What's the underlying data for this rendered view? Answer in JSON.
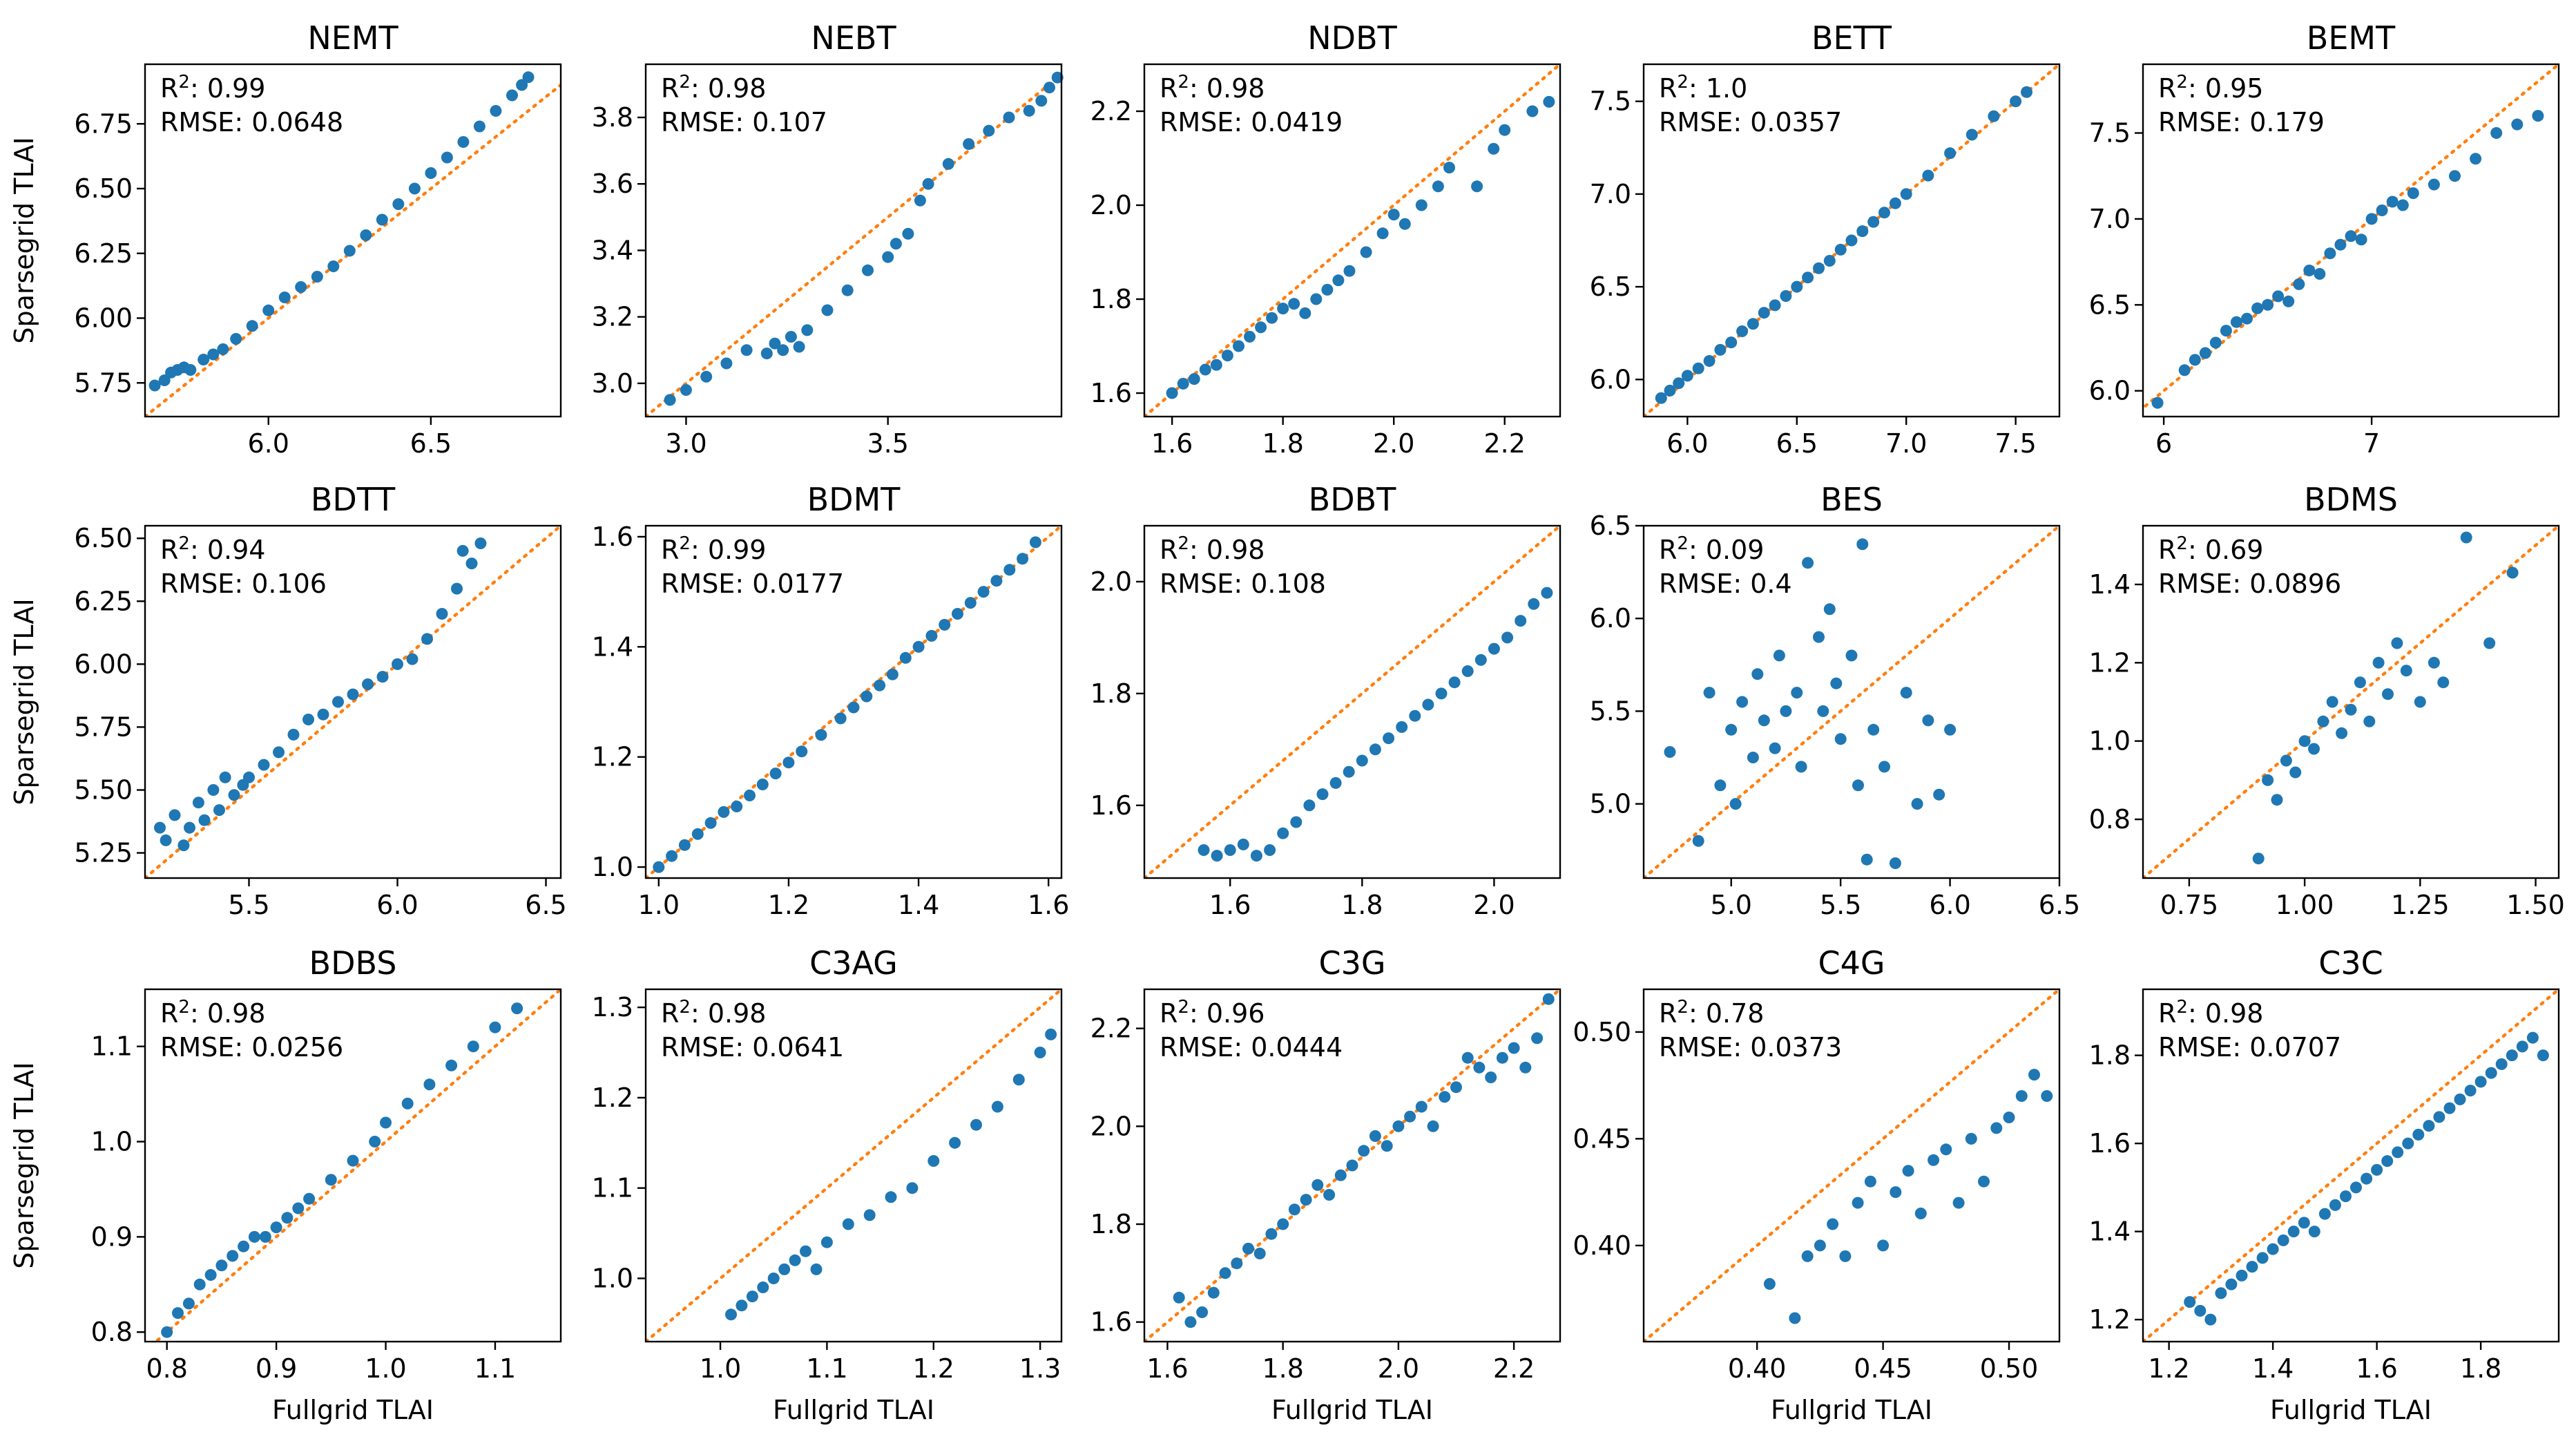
{
  "colors": {
    "points": "#1f77b4",
    "identity_line": "#ff7f0e",
    "axes": "#000000"
  },
  "chart_data": [
    {
      "type": "scatter",
      "title": "NEMT",
      "xlabel": "",
      "ylabel": "Sparsegrid TLAI",
      "xlim": [
        5.62,
        6.9
      ],
      "ylim": [
        5.62,
        6.98
      ],
      "xticks": [
        "6.0",
        "6.5"
      ],
      "yticks": [
        "5.75",
        "6.00",
        "6.25",
        "6.50",
        "6.75"
      ],
      "annotation": {
        "r2": "0.99",
        "rmse": "0.0648"
      },
      "x": [
        5.65,
        5.68,
        5.7,
        5.72,
        5.74,
        5.76,
        5.8,
        5.83,
        5.86,
        5.9,
        5.95,
        6.0,
        6.05,
        6.1,
        6.15,
        6.2,
        6.25,
        6.3,
        6.35,
        6.4,
        6.45,
        6.5,
        6.55,
        6.6,
        6.65,
        6.7,
        6.75,
        6.78,
        6.8
      ],
      "y": [
        5.74,
        5.76,
        5.79,
        5.8,
        5.81,
        5.8,
        5.84,
        5.86,
        5.88,
        5.92,
        5.97,
        6.03,
        6.08,
        6.12,
        6.16,
        6.2,
        6.26,
        6.32,
        6.38,
        6.44,
        6.5,
        6.56,
        6.62,
        6.68,
        6.74,
        6.8,
        6.86,
        6.9,
        6.93
      ]
    },
    {
      "type": "scatter",
      "title": "NEBT",
      "xlabel": "",
      "ylabel": "",
      "xlim": [
        2.9,
        3.93
      ],
      "ylim": [
        2.9,
        3.96
      ],
      "xticks": [
        "3.0",
        "3.5"
      ],
      "yticks": [
        "3.0",
        "3.2",
        "3.4",
        "3.6",
        "3.8"
      ],
      "annotation": {
        "r2": "0.98",
        "rmse": "0.107"
      },
      "x": [
        2.96,
        3.0,
        3.05,
        3.1,
        3.15,
        3.2,
        3.22,
        3.24,
        3.26,
        3.28,
        3.3,
        3.35,
        3.4,
        3.45,
        3.5,
        3.52,
        3.55,
        3.58,
        3.6,
        3.65,
        3.7,
        3.75,
        3.8,
        3.85,
        3.88,
        3.9,
        3.92
      ],
      "y": [
        2.95,
        2.98,
        3.02,
        3.06,
        3.1,
        3.09,
        3.12,
        3.1,
        3.14,
        3.11,
        3.16,
        3.22,
        3.28,
        3.34,
        3.38,
        3.42,
        3.45,
        3.55,
        3.6,
        3.66,
        3.72,
        3.76,
        3.8,
        3.82,
        3.85,
        3.89,
        3.92
      ]
    },
    {
      "type": "scatter",
      "title": "NDBT",
      "xlabel": "",
      "ylabel": "",
      "xlim": [
        1.55,
        2.3
      ],
      "ylim": [
        1.55,
        2.3
      ],
      "xticks": [
        "1.6",
        "1.8",
        "2.0",
        "2.2"
      ],
      "yticks": [
        "1.6",
        "1.8",
        "2.0",
        "2.2"
      ],
      "annotation": {
        "r2": "0.98",
        "rmse": "0.0419"
      },
      "x": [
        1.6,
        1.62,
        1.64,
        1.66,
        1.68,
        1.7,
        1.72,
        1.74,
        1.76,
        1.78,
        1.8,
        1.82,
        1.84,
        1.86,
        1.88,
        1.9,
        1.92,
        1.95,
        1.98,
        2.0,
        2.02,
        2.05,
        2.08,
        2.1,
        2.15,
        2.18,
        2.2,
        2.25,
        2.28
      ],
      "y": [
        1.6,
        1.62,
        1.63,
        1.65,
        1.66,
        1.68,
        1.7,
        1.72,
        1.74,
        1.76,
        1.78,
        1.79,
        1.77,
        1.8,
        1.82,
        1.84,
        1.86,
        1.9,
        1.94,
        1.98,
        1.96,
        2.0,
        2.04,
        2.08,
        2.04,
        2.12,
        2.16,
        2.2,
        2.22
      ]
    },
    {
      "type": "scatter",
      "title": "BETT",
      "xlabel": "",
      "ylabel": "",
      "xlim": [
        5.8,
        7.7
      ],
      "ylim": [
        5.8,
        7.7
      ],
      "xticks": [
        "6.0",
        "6.5",
        "7.0",
        "7.5"
      ],
      "yticks": [
        "6.0",
        "6.5",
        "7.0",
        "7.5"
      ],
      "annotation": {
        "r2": "1.0",
        "rmse": "0.0357"
      },
      "x": [
        5.88,
        5.92,
        5.96,
        6.0,
        6.05,
        6.1,
        6.15,
        6.2,
        6.25,
        6.3,
        6.35,
        6.4,
        6.45,
        6.5,
        6.55,
        6.6,
        6.65,
        6.7,
        6.75,
        6.8,
        6.85,
        6.9,
        6.95,
        7.0,
        7.1,
        7.2,
        7.3,
        7.4,
        7.5,
        7.55
      ],
      "y": [
        5.9,
        5.94,
        5.98,
        6.02,
        6.06,
        6.1,
        6.16,
        6.2,
        6.26,
        6.3,
        6.36,
        6.4,
        6.45,
        6.5,
        6.55,
        6.6,
        6.64,
        6.7,
        6.75,
        6.8,
        6.85,
        6.9,
        6.95,
        7.0,
        7.1,
        7.22,
        7.32,
        7.42,
        7.5,
        7.55
      ]
    },
    {
      "type": "scatter",
      "title": "BEMT",
      "xlabel": "",
      "ylabel": "",
      "xlim": [
        5.9,
        7.9
      ],
      "ylim": [
        5.85,
        7.9
      ],
      "xticks": [
        "6",
        "7"
      ],
      "yticks": [
        "6.0",
        "6.5",
        "7.0",
        "7.5"
      ],
      "annotation": {
        "r2": "0.95",
        "rmse": "0.179"
      },
      "x": [
        5.97,
        6.1,
        6.15,
        6.2,
        6.25,
        6.3,
        6.35,
        6.4,
        6.45,
        6.5,
        6.55,
        6.6,
        6.65,
        6.7,
        6.75,
        6.8,
        6.85,
        6.9,
        6.95,
        7.0,
        7.05,
        7.1,
        7.15,
        7.2,
        7.3,
        7.4,
        7.5,
        7.6,
        7.7,
        7.8
      ],
      "y": [
        5.93,
        6.12,
        6.18,
        6.22,
        6.28,
        6.35,
        6.4,
        6.42,
        6.48,
        6.5,
        6.55,
        6.52,
        6.62,
        6.7,
        6.68,
        6.8,
        6.85,
        6.9,
        6.88,
        7.0,
        7.05,
        7.1,
        7.08,
        7.15,
        7.2,
        7.25,
        7.35,
        7.5,
        7.55,
        7.6
      ]
    },
    {
      "type": "scatter",
      "title": "BDTT",
      "xlabel": "",
      "ylabel": "Sparsegrid TLAI",
      "xlim": [
        5.15,
        6.55
      ],
      "ylim": [
        5.15,
        6.55
      ],
      "xticks": [
        "5.5",
        "6.0",
        "6.5"
      ],
      "yticks": [
        "5.25",
        "5.50",
        "5.75",
        "6.00",
        "6.25",
        "6.50"
      ],
      "annotation": {
        "r2": "0.94",
        "rmse": "0.106"
      },
      "x": [
        5.2,
        5.22,
        5.25,
        5.28,
        5.3,
        5.33,
        5.35,
        5.38,
        5.4,
        5.42,
        5.45,
        5.48,
        5.5,
        5.55,
        5.6,
        5.65,
        5.7,
        5.75,
        5.8,
        5.85,
        5.9,
        5.95,
        6.0,
        6.05,
        6.1,
        6.15,
        6.2,
        6.22,
        6.25,
        6.28
      ],
      "y": [
        5.35,
        5.3,
        5.4,
        5.28,
        5.35,
        5.45,
        5.38,
        5.5,
        5.42,
        5.55,
        5.48,
        5.52,
        5.55,
        5.6,
        5.65,
        5.72,
        5.78,
        5.8,
        5.85,
        5.88,
        5.92,
        5.95,
        6.0,
        6.02,
        6.1,
        6.2,
        6.3,
        6.45,
        6.4,
        6.48
      ]
    },
    {
      "type": "scatter",
      "title": "BDMT",
      "xlabel": "",
      "ylabel": "",
      "xlim": [
        0.98,
        1.62
      ],
      "ylim": [
        0.98,
        1.62
      ],
      "xticks": [
        "1.0",
        "1.2",
        "1.4",
        "1.6"
      ],
      "yticks": [
        "1.0",
        "1.2",
        "1.4",
        "1.6"
      ],
      "annotation": {
        "r2": "0.99",
        "rmse": "0.0177"
      },
      "x": [
        1.0,
        1.02,
        1.04,
        1.06,
        1.08,
        1.1,
        1.12,
        1.14,
        1.16,
        1.18,
        1.2,
        1.22,
        1.25,
        1.28,
        1.3,
        1.32,
        1.34,
        1.36,
        1.38,
        1.4,
        1.42,
        1.44,
        1.46,
        1.48,
        1.5,
        1.52,
        1.54,
        1.56,
        1.58
      ],
      "y": [
        1.0,
        1.02,
        1.04,
        1.06,
        1.08,
        1.1,
        1.11,
        1.13,
        1.15,
        1.17,
        1.19,
        1.21,
        1.24,
        1.27,
        1.29,
        1.31,
        1.33,
        1.35,
        1.38,
        1.4,
        1.42,
        1.44,
        1.46,
        1.48,
        1.5,
        1.52,
        1.54,
        1.56,
        1.59
      ]
    },
    {
      "type": "scatter",
      "title": "BDBT",
      "xlabel": "",
      "ylabel": "",
      "xlim": [
        1.47,
        2.1
      ],
      "ylim": [
        1.47,
        2.1
      ],
      "xticks": [
        "1.6",
        "1.8",
        "2.0"
      ],
      "yticks": [
        "1.6",
        "1.8",
        "2.0"
      ],
      "annotation": {
        "r2": "0.98",
        "rmse": "0.108"
      },
      "x": [
        1.56,
        1.58,
        1.6,
        1.62,
        1.64,
        1.66,
        1.68,
        1.7,
        1.72,
        1.74,
        1.76,
        1.78,
        1.8,
        1.82,
        1.84,
        1.86,
        1.88,
        1.9,
        1.92,
        1.94,
        1.96,
        1.98,
        2.0,
        2.02,
        2.04,
        2.06,
        2.08
      ],
      "y": [
        1.52,
        1.51,
        1.52,
        1.53,
        1.51,
        1.52,
        1.55,
        1.57,
        1.6,
        1.62,
        1.64,
        1.66,
        1.68,
        1.7,
        1.72,
        1.74,
        1.76,
        1.78,
        1.8,
        1.82,
        1.84,
        1.86,
        1.88,
        1.9,
        1.93,
        1.96,
        1.98
      ]
    },
    {
      "type": "scatter",
      "title": "BES",
      "xlabel": "",
      "ylabel": "",
      "xlim": [
        4.6,
        6.5
      ],
      "ylim": [
        4.6,
        6.5
      ],
      "xticks": [
        "5.0",
        "5.5",
        "6.0",
        "6.5"
      ],
      "yticks": [
        "5.0",
        "5.5",
        "6.0",
        "6.5"
      ],
      "annotation": {
        "r2": "0.09",
        "rmse": "0.4"
      },
      "x": [
        4.72,
        4.85,
        4.9,
        4.95,
        5.0,
        5.02,
        5.05,
        5.1,
        5.12,
        5.15,
        5.2,
        5.22,
        5.25,
        5.3,
        5.32,
        5.35,
        5.4,
        5.42,
        5.45,
        5.48,
        5.5,
        5.55,
        5.58,
        5.6,
        5.62,
        5.65,
        5.7,
        5.75,
        5.8,
        5.85,
        5.9,
        5.95,
        6.0
      ],
      "y": [
        5.28,
        4.8,
        5.6,
        5.1,
        5.4,
        5.0,
        5.55,
        5.25,
        5.7,
        5.45,
        5.3,
        5.8,
        5.5,
        5.6,
        5.2,
        6.3,
        5.9,
        5.5,
        6.05,
        5.65,
        5.35,
        5.8,
        5.1,
        6.4,
        4.7,
        5.4,
        5.2,
        4.68,
        5.6,
        5.0,
        5.45,
        5.05,
        5.4
      ]
    },
    {
      "type": "scatter",
      "title": "BDMS",
      "xlabel": "",
      "ylabel": "",
      "xlim": [
        0.65,
        1.55
      ],
      "ylim": [
        0.65,
        1.55
      ],
      "xticks": [
        "0.75",
        "1.00",
        "1.25",
        "1.50"
      ],
      "yticks": [
        "0.8",
        "1.0",
        "1.2",
        "1.4"
      ],
      "annotation": {
        "r2": "0.69",
        "rmse": "0.0896"
      },
      "x": [
        0.9,
        0.92,
        0.94,
        0.96,
        0.98,
        1.0,
        1.02,
        1.04,
        1.06,
        1.08,
        1.1,
        1.12,
        1.14,
        1.16,
        1.18,
        1.2,
        1.22,
        1.25,
        1.28,
        1.3,
        1.35,
        1.4,
        1.45
      ],
      "y": [
        0.7,
        0.9,
        0.85,
        0.95,
        0.92,
        1.0,
        0.98,
        1.05,
        1.1,
        1.02,
        1.08,
        1.15,
        1.05,
        1.2,
        1.12,
        1.25,
        1.18,
        1.1,
        1.2,
        1.15,
        1.52,
        1.25,
        1.43
      ]
    },
    {
      "type": "scatter",
      "title": "BDBS",
      "xlabel": "Fullgrid TLAI",
      "ylabel": "Sparsegrid TLAI",
      "xlim": [
        0.78,
        1.16
      ],
      "ylim": [
        0.79,
        1.16
      ],
      "xticks": [
        "0.8",
        "0.9",
        "1.0",
        "1.1"
      ],
      "yticks": [
        "0.8",
        "0.9",
        "1.0",
        "1.1"
      ],
      "annotation": {
        "r2": "0.98",
        "rmse": "0.0256"
      },
      "x": [
        0.8,
        0.81,
        0.82,
        0.83,
        0.84,
        0.85,
        0.86,
        0.87,
        0.88,
        0.89,
        0.9,
        0.91,
        0.92,
        0.93,
        0.95,
        0.97,
        0.99,
        1.0,
        1.02,
        1.04,
        1.06,
        1.08,
        1.1,
        1.12
      ],
      "y": [
        0.8,
        0.82,
        0.83,
        0.85,
        0.86,
        0.87,
        0.88,
        0.89,
        0.9,
        0.9,
        0.91,
        0.92,
        0.93,
        0.94,
        0.96,
        0.98,
        1.0,
        1.02,
        1.04,
        1.06,
        1.08,
        1.1,
        1.12,
        1.14
      ]
    },
    {
      "type": "scatter",
      "title": "C3AG",
      "xlabel": "Fullgrid TLAI",
      "ylabel": "",
      "xlim": [
        0.93,
        1.32
      ],
      "ylim": [
        0.93,
        1.32
      ],
      "xticks": [
        "1.0",
        "1.1",
        "1.2",
        "1.3"
      ],
      "yticks": [
        "1.0",
        "1.1",
        "1.2",
        "1.3"
      ],
      "annotation": {
        "r2": "0.98",
        "rmse": "0.0641"
      },
      "x": [
        1.01,
        1.02,
        1.03,
        1.04,
        1.05,
        1.06,
        1.07,
        1.08,
        1.09,
        1.1,
        1.12,
        1.14,
        1.16,
        1.18,
        1.2,
        1.22,
        1.24,
        1.26,
        1.28,
        1.3,
        1.31
      ],
      "y": [
        0.96,
        0.97,
        0.98,
        0.99,
        1.0,
        1.01,
        1.02,
        1.03,
        1.01,
        1.04,
        1.06,
        1.07,
        1.09,
        1.1,
        1.13,
        1.15,
        1.17,
        1.19,
        1.22,
        1.25,
        1.27
      ]
    },
    {
      "type": "scatter",
      "title": "C3G",
      "xlabel": "Fullgrid TLAI",
      "ylabel": "",
      "xlim": [
        1.56,
        2.28
      ],
      "ylim": [
        1.56,
        2.28
      ],
      "xticks": [
        "1.6",
        "1.8",
        "2.0",
        "2.2"
      ],
      "yticks": [
        "1.6",
        "1.8",
        "2.0",
        "2.2"
      ],
      "annotation": {
        "r2": "0.96",
        "rmse": "0.0444"
      },
      "x": [
        1.62,
        1.64,
        1.66,
        1.68,
        1.7,
        1.72,
        1.74,
        1.76,
        1.78,
        1.8,
        1.82,
        1.84,
        1.86,
        1.88,
        1.9,
        1.92,
        1.94,
        1.96,
        1.98,
        2.0,
        2.02,
        2.04,
        2.06,
        2.08,
        2.1,
        2.12,
        2.14,
        2.16,
        2.18,
        2.2,
        2.22,
        2.24,
        2.26
      ],
      "y": [
        1.65,
        1.6,
        1.62,
        1.66,
        1.7,
        1.72,
        1.75,
        1.74,
        1.78,
        1.8,
        1.83,
        1.85,
        1.88,
        1.86,
        1.9,
        1.92,
        1.95,
        1.98,
        1.96,
        2.0,
        2.02,
        2.04,
        2.0,
        2.06,
        2.08,
        2.14,
        2.12,
        2.1,
        2.14,
        2.16,
        2.12,
        2.18,
        2.26
      ]
    },
    {
      "type": "scatter",
      "title": "C4G",
      "xlabel": "Fullgrid TLAI",
      "ylabel": "",
      "xlim": [
        0.355,
        0.52
      ],
      "ylim": [
        0.355,
        0.52
      ],
      "xticks": [
        "0.40",
        "0.45",
        "0.50"
      ],
      "yticks": [
        "0.40",
        "0.45",
        "0.50"
      ],
      "annotation": {
        "r2": "0.78",
        "rmse": "0.0373"
      },
      "x": [
        0.405,
        0.415,
        0.42,
        0.425,
        0.43,
        0.435,
        0.44,
        0.445,
        0.45,
        0.455,
        0.46,
        0.465,
        0.47,
        0.475,
        0.48,
        0.485,
        0.49,
        0.495,
        0.5,
        0.505,
        0.51,
        0.515
      ],
      "y": [
        0.382,
        0.366,
        0.395,
        0.4,
        0.41,
        0.395,
        0.42,
        0.43,
        0.4,
        0.425,
        0.435,
        0.415,
        0.44,
        0.445,
        0.42,
        0.45,
        0.43,
        0.455,
        0.46,
        0.47,
        0.48,
        0.47
      ]
    },
    {
      "type": "scatter",
      "title": "C3C",
      "xlabel": "Fullgrid TLAI",
      "ylabel": "",
      "xlim": [
        1.15,
        1.95
      ],
      "ylim": [
        1.15,
        1.95
      ],
      "xticks": [
        "1.2",
        "1.4",
        "1.6",
        "1.8"
      ],
      "yticks": [
        "1.2",
        "1.4",
        "1.6",
        "1.8"
      ],
      "annotation": {
        "r2": "0.98",
        "rmse": "0.0707"
      },
      "x": [
        1.24,
        1.26,
        1.28,
        1.3,
        1.32,
        1.34,
        1.36,
        1.38,
        1.4,
        1.42,
        1.44,
        1.46,
        1.48,
        1.5,
        1.52,
        1.54,
        1.56,
        1.58,
        1.6,
        1.62,
        1.64,
        1.66,
        1.68,
        1.7,
        1.72,
        1.74,
        1.76,
        1.78,
        1.8,
        1.82,
        1.84,
        1.86,
        1.88,
        1.9,
        1.92
      ],
      "y": [
        1.24,
        1.22,
        1.2,
        1.26,
        1.28,
        1.3,
        1.32,
        1.34,
        1.36,
        1.38,
        1.4,
        1.42,
        1.4,
        1.44,
        1.46,
        1.48,
        1.5,
        1.52,
        1.54,
        1.56,
        1.58,
        1.6,
        1.62,
        1.64,
        1.66,
        1.68,
        1.7,
        1.72,
        1.74,
        1.76,
        1.78,
        1.8,
        1.82,
        1.84,
        1.8
      ]
    }
  ]
}
